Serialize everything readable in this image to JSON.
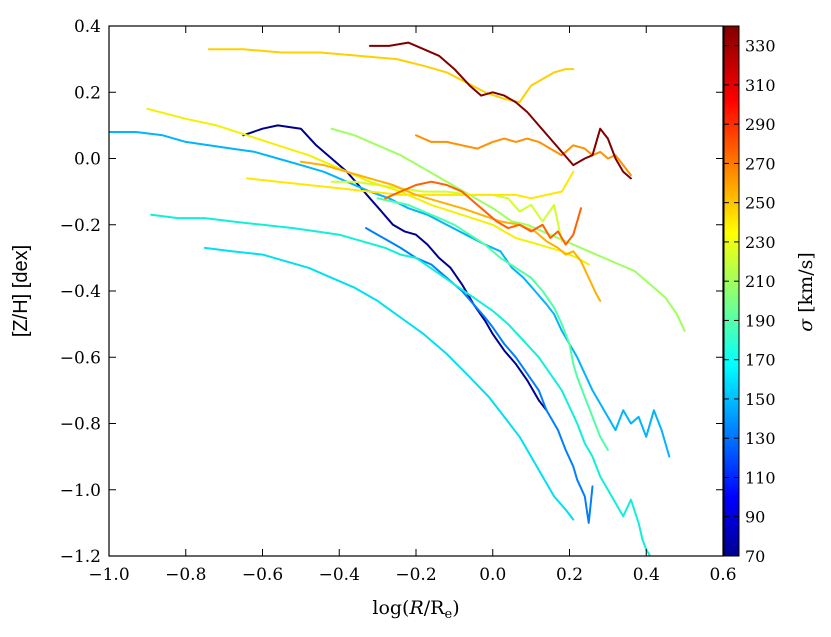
{
  "chart_data": {
    "type": "line",
    "xlabel": "log(R/R_e)",
    "xlabel_parts": {
      "prefix": "log(",
      "var": "R",
      "sep": "/R",
      "sub": "e",
      "suffix": ")"
    },
    "ylabel": "[Z/H] [dex]",
    "xlim": [
      -1.0,
      0.6
    ],
    "ylim": [
      -1.2,
      0.4
    ],
    "xticks": [
      -1.0,
      -0.8,
      -0.6,
      -0.4,
      -0.2,
      0.0,
      0.2,
      0.4,
      0.6
    ],
    "xtick_labels": [
      "−1.0",
      "−0.8",
      "−0.6",
      "−0.4",
      "−0.2",
      "0.0",
      "0.2",
      "0.4",
      "0.6"
    ],
    "yticks": [
      -1.2,
      -1.0,
      -0.8,
      -0.6,
      -0.4,
      -0.2,
      0.0,
      0.2,
      0.4
    ],
    "ytick_labels": [
      "−1.2",
      "−1.0",
      "−0.8",
      "−0.6",
      "−0.4",
      "−0.2",
      "0.0",
      "0.2",
      "0.4"
    ],
    "colorbar": {
      "label": "σ [km/s]",
      "label_parts": {
        "var": "σ",
        "unit": " [km/s]"
      },
      "range": [
        70,
        340
      ],
      "ticks": [
        70,
        90,
        110,
        130,
        150,
        170,
        190,
        210,
        230,
        250,
        270,
        290,
        310,
        330
      ],
      "tick_labels": [
        "70",
        "90",
        "110",
        "130",
        "150",
        "170",
        "190",
        "210",
        "230",
        "250",
        "270",
        "290",
        "310",
        "330"
      ],
      "colormap": "jet"
    },
    "series": [
      {
        "name": "sigma-75",
        "sigma": 75,
        "color": "#00008f",
        "x": [
          -0.65,
          -0.6,
          -0.56,
          -0.5,
          -0.46,
          -0.42,
          -0.38,
          -0.35,
          -0.32,
          -0.29,
          -0.26,
          -0.23,
          -0.2,
          -0.17,
          -0.14,
          -0.11,
          -0.08,
          -0.05,
          -0.02,
          0.0,
          0.03,
          0.06,
          0.09,
          0.12,
          0.14
        ],
        "y": [
          0.07,
          0.09,
          0.1,
          0.09,
          0.04,
          0.0,
          -0.04,
          -0.08,
          -0.12,
          -0.16,
          -0.2,
          -0.22,
          -0.23,
          -0.26,
          -0.3,
          -0.33,
          -0.38,
          -0.44,
          -0.49,
          -0.53,
          -0.58,
          -0.62,
          -0.67,
          -0.73,
          -0.76
        ]
      },
      {
        "name": "sigma-140",
        "sigma": 140,
        "color": "#0080ff",
        "x": [
          -0.33,
          -0.3,
          -0.27,
          -0.24,
          -0.2,
          -0.16,
          -0.12,
          -0.08,
          -0.05,
          -0.02,
          0.0,
          0.03,
          0.06,
          0.09,
          0.12,
          0.14,
          0.17,
          0.19,
          0.21,
          0.22,
          0.24,
          0.25,
          0.26
        ],
        "y": [
          -0.21,
          -0.23,
          -0.25,
          -0.27,
          -0.3,
          -0.32,
          -0.36,
          -0.4,
          -0.44,
          -0.48,
          -0.51,
          -0.56,
          -0.6,
          -0.65,
          -0.7,
          -0.76,
          -0.82,
          -0.88,
          -0.93,
          -0.97,
          -1.02,
          -1.1,
          -0.99
        ]
      },
      {
        "name": "sigma-155",
        "sigma": 155,
        "color": "#00b4ff",
        "x": [
          -1.0,
          -0.93,
          -0.86,
          -0.8,
          -0.74,
          -0.68,
          -0.62,
          -0.56,
          -0.5,
          -0.44,
          -0.38,
          -0.32,
          -0.27,
          -0.22,
          -0.17,
          -0.12,
          -0.07,
          -0.02,
          0.02,
          0.05,
          0.08,
          0.11,
          0.14,
          0.16,
          0.18,
          0.2,
          0.22,
          0.24,
          0.26,
          0.28,
          0.3,
          0.32,
          0.34,
          0.36,
          0.38,
          0.4,
          0.42,
          0.44,
          0.46
        ],
        "y": [
          0.08,
          0.08,
          0.07,
          0.05,
          0.04,
          0.03,
          0.02,
          0.0,
          -0.02,
          -0.04,
          -0.07,
          -0.1,
          -0.12,
          -0.15,
          -0.17,
          -0.2,
          -0.23,
          -0.26,
          -0.28,
          -0.33,
          -0.36,
          -0.4,
          -0.44,
          -0.47,
          -0.52,
          -0.56,
          -0.6,
          -0.65,
          -0.7,
          -0.74,
          -0.78,
          -0.82,
          -0.76,
          -0.8,
          -0.78,
          -0.84,
          -0.76,
          -0.82,
          -0.9
        ]
      },
      {
        "name": "sigma-165",
        "sigma": 165,
        "color": "#00e0f0",
        "x": [
          -0.75,
          -0.68,
          -0.6,
          -0.54,
          -0.48,
          -0.42,
          -0.36,
          -0.3,
          -0.24,
          -0.18,
          -0.12,
          -0.06,
          -0.01,
          0.03,
          0.07,
          0.1,
          0.13,
          0.16,
          0.19,
          0.21
        ],
        "y": [
          -0.27,
          -0.28,
          -0.29,
          -0.31,
          -0.33,
          -0.36,
          -0.39,
          -0.43,
          -0.48,
          -0.53,
          -0.59,
          -0.66,
          -0.72,
          -0.78,
          -0.84,
          -0.9,
          -0.96,
          -1.02,
          -1.06,
          -1.09
        ]
      },
      {
        "name": "sigma-170",
        "sigma": 170,
        "color": "#10f0d8",
        "x": [
          -0.89,
          -0.82,
          -0.75,
          -0.68,
          -0.6,
          -0.52,
          -0.46,
          -0.4,
          -0.34,
          -0.28,
          -0.24,
          -0.2,
          -0.15,
          -0.1,
          -0.05,
          0.0,
          0.04,
          0.08,
          0.12,
          0.15,
          0.18,
          0.2,
          0.22,
          0.24,
          0.26,
          0.28,
          0.3,
          0.32,
          0.34,
          0.36,
          0.38,
          0.39,
          0.4,
          0.41
        ],
        "y": [
          -0.17,
          -0.18,
          -0.18,
          -0.19,
          -0.2,
          -0.21,
          -0.22,
          -0.23,
          -0.25,
          -0.27,
          -0.29,
          -0.3,
          -0.34,
          -0.38,
          -0.42,
          -0.46,
          -0.5,
          -0.55,
          -0.6,
          -0.65,
          -0.7,
          -0.75,
          -0.8,
          -0.86,
          -0.9,
          -0.96,
          -1.0,
          -1.04,
          -1.08,
          -1.03,
          -1.1,
          -1.15,
          -1.18,
          -1.2
        ]
      },
      {
        "name": "sigma-190",
        "sigma": 190,
        "color": "#4fffa8",
        "x": [
          -0.3,
          -0.26,
          -0.22,
          -0.18,
          -0.14,
          -0.1,
          -0.06,
          -0.02,
          0.02,
          0.06,
          0.1,
          0.13,
          0.16,
          0.18,
          0.2,
          0.21,
          0.22,
          0.24,
          0.26,
          0.28,
          0.3
        ],
        "y": [
          -0.12,
          -0.13,
          -0.14,
          -0.16,
          -0.18,
          -0.2,
          -0.23,
          -0.26,
          -0.3,
          -0.33,
          -0.36,
          -0.4,
          -0.45,
          -0.5,
          -0.56,
          -0.62,
          -0.66,
          -0.72,
          -0.78,
          -0.84,
          -0.88
        ]
      },
      {
        "name": "sigma-215",
        "sigma": 215,
        "color": "#9fff60",
        "x": [
          -0.42,
          -0.36,
          -0.3,
          -0.24,
          -0.18,
          -0.12,
          -0.06,
          0.0,
          0.05,
          0.09,
          0.13,
          0.17,
          0.21,
          0.25,
          0.29,
          0.33,
          0.37,
          0.41,
          0.45,
          0.48,
          0.5
        ],
        "y": [
          0.09,
          0.07,
          0.04,
          0.01,
          -0.03,
          -0.07,
          -0.11,
          -0.15,
          -0.19,
          -0.2,
          -0.22,
          -0.24,
          -0.26,
          -0.28,
          -0.3,
          -0.32,
          -0.34,
          -0.38,
          -0.42,
          -0.47,
          -0.52
        ]
      },
      {
        "name": "sigma-225",
        "sigma": 225,
        "color": "#cfff2f",
        "x": [
          -0.42,
          -0.36,
          -0.3,
          -0.24,
          -0.18,
          -0.12,
          -0.06,
          0.0,
          0.04,
          0.07,
          0.1,
          0.13,
          0.16,
          0.18
        ],
        "y": [
          -0.07,
          -0.07,
          -0.08,
          -0.09,
          -0.1,
          -0.1,
          -0.11,
          -0.11,
          -0.12,
          -0.16,
          -0.14,
          -0.19,
          -0.14,
          -0.25
        ]
      },
      {
        "name": "sigma-238",
        "sigma": 238,
        "color": "#f4f000",
        "x": [
          -0.9,
          -0.8,
          -0.72,
          -0.64,
          -0.56,
          -0.48,
          -0.4,
          -0.32,
          -0.24,
          -0.16,
          -0.08,
          0.0,
          0.06,
          0.12,
          0.18,
          0.22,
          0.25
        ],
        "y": [
          0.15,
          0.12,
          0.1,
          0.07,
          0.04,
          0.01,
          -0.03,
          -0.07,
          -0.1,
          -0.14,
          -0.17,
          -0.2,
          -0.24,
          -0.26,
          -0.28,
          -0.3,
          -0.32
        ]
      },
      {
        "name": "sigma-242",
        "sigma": 242,
        "color": "#ffe800",
        "x": [
          -0.64,
          -0.56,
          -0.48,
          -0.4,
          -0.32,
          -0.24,
          -0.16,
          -0.08,
          0.0,
          0.06,
          0.1,
          0.14,
          0.18,
          0.21
        ],
        "y": [
          -0.06,
          -0.07,
          -0.08,
          -0.09,
          -0.1,
          -0.11,
          -0.11,
          -0.11,
          -0.11,
          -0.11,
          -0.12,
          -0.11,
          -0.1,
          -0.04
        ]
      },
      {
        "name": "sigma-248",
        "sigma": 248,
        "color": "#ffd000",
        "x": [
          -0.74,
          -0.65,
          -0.55,
          -0.45,
          -0.35,
          -0.25,
          -0.18,
          -0.12,
          -0.07,
          -0.02,
          0.03,
          0.07,
          0.1,
          0.13,
          0.16,
          0.19,
          0.21
        ],
        "y": [
          0.33,
          0.33,
          0.32,
          0.32,
          0.31,
          0.3,
          0.28,
          0.26,
          0.23,
          0.2,
          0.18,
          0.17,
          0.22,
          0.24,
          0.26,
          0.27,
          0.27
        ]
      },
      {
        "name": "sigma-262",
        "sigma": 262,
        "color": "#ffb000",
        "x": [
          -0.5,
          -0.44,
          -0.38,
          -0.32,
          -0.26,
          -0.2,
          -0.14,
          -0.08,
          -0.03,
          0.02,
          0.07,
          0.11,
          0.14,
          0.17,
          0.19,
          0.21,
          0.23,
          0.25,
          0.27,
          0.28
        ],
        "y": [
          -0.01,
          -0.02,
          -0.04,
          -0.06,
          -0.08,
          -0.11,
          -0.13,
          -0.15,
          -0.17,
          -0.19,
          -0.2,
          -0.22,
          -0.25,
          -0.27,
          -0.29,
          -0.28,
          -0.31,
          -0.36,
          -0.41,
          -0.43
        ]
      },
      {
        "name": "sigma-278",
        "sigma": 278,
        "color": "#ff9000",
        "x": [
          -0.2,
          -0.16,
          -0.12,
          -0.08,
          -0.04,
          0.0,
          0.03,
          0.06,
          0.09,
          0.12,
          0.15,
          0.18,
          0.21,
          0.24,
          0.26,
          0.28,
          0.3,
          0.32,
          0.34,
          0.36
        ],
        "y": [
          0.07,
          0.05,
          0.05,
          0.04,
          0.03,
          0.05,
          0.06,
          0.05,
          0.06,
          0.05,
          0.03,
          0.01,
          0.04,
          0.03,
          0.01,
          0.02,
          0.0,
          0.01,
          -0.02,
          -0.05
        ]
      },
      {
        "name": "sigma-295",
        "sigma": 295,
        "color": "#ff6000",
        "x": [
          -0.28,
          -0.24,
          -0.2,
          -0.16,
          -0.12,
          -0.08,
          -0.05,
          -0.02,
          0.01,
          0.04,
          0.07,
          0.1,
          0.13,
          0.15,
          0.17,
          0.19,
          0.21,
          0.22,
          0.23
        ],
        "y": [
          -0.12,
          -0.1,
          -0.08,
          -0.07,
          -0.08,
          -0.1,
          -0.13,
          -0.16,
          -0.19,
          -0.21,
          -0.2,
          -0.22,
          -0.2,
          -0.24,
          -0.22,
          -0.26,
          -0.23,
          -0.19,
          -0.15
        ]
      },
      {
        "name": "sigma-335",
        "sigma": 335,
        "color": "#800000",
        "x": [
          -0.32,
          -0.27,
          -0.22,
          -0.18,
          -0.14,
          -0.1,
          -0.06,
          -0.03,
          0.0,
          0.03,
          0.06,
          0.09,
          0.12,
          0.15,
          0.18,
          0.21,
          0.24,
          0.26,
          0.28,
          0.3,
          0.32,
          0.34,
          0.36
        ],
        "y": [
          0.34,
          0.34,
          0.35,
          0.33,
          0.31,
          0.27,
          0.22,
          0.19,
          0.2,
          0.19,
          0.17,
          0.14,
          0.1,
          0.06,
          0.02,
          -0.02,
          0.0,
          0.01,
          0.09,
          0.06,
          0.0,
          -0.04,
          -0.06
        ]
      }
    ]
  }
}
